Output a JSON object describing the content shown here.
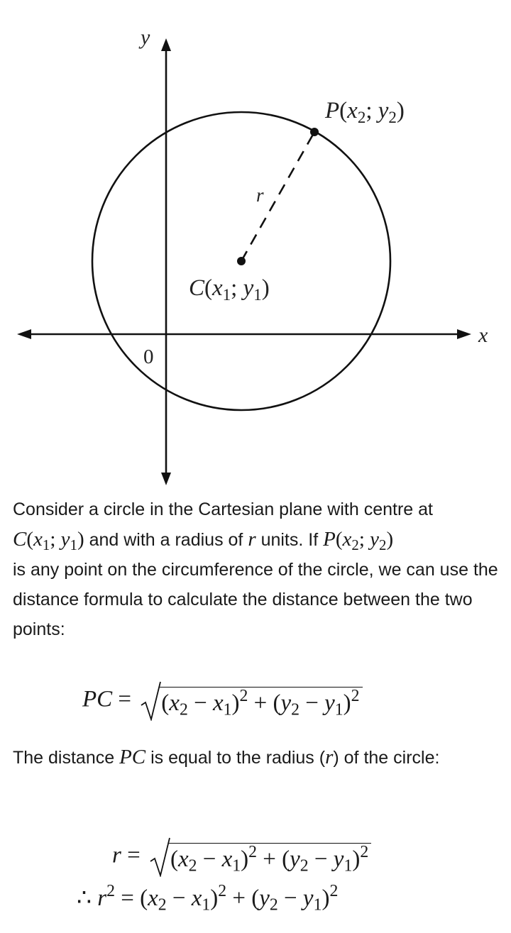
{
  "figure": {
    "axis_y_label": "y",
    "axis_x_label": "x",
    "origin_label": "0",
    "radius_label": "r",
    "point_P": {
      "name": "P",
      "x_var": "x",
      "x_sub": "2",
      "y_var": "y",
      "y_sub": "2"
    },
    "point_C": {
      "name": "C",
      "x_var": "x",
      "x_sub": "1",
      "y_var": "y",
      "y_sub": "1"
    }
  },
  "text": {
    "p1_part1": "Consider a circle in the Cartesian plane with centre at",
    "p1_part2": " and with a radius of ",
    "p1_part3": " units. If ",
    "p1_part4": "is any point on the circumference of the circle, we can use the distance formula to calculate the distance between the two points:",
    "p2_part1": "The distance ",
    "p2_part2": " is equal to the radius (",
    "p2_part3": ") of the circle:"
  },
  "math": {
    "PC": "PC",
    "r": "r",
    "C": "C",
    "P": "P",
    "x": "x",
    "y": "y",
    "one": "1",
    "two": "2",
    "therefore": "∴"
  }
}
